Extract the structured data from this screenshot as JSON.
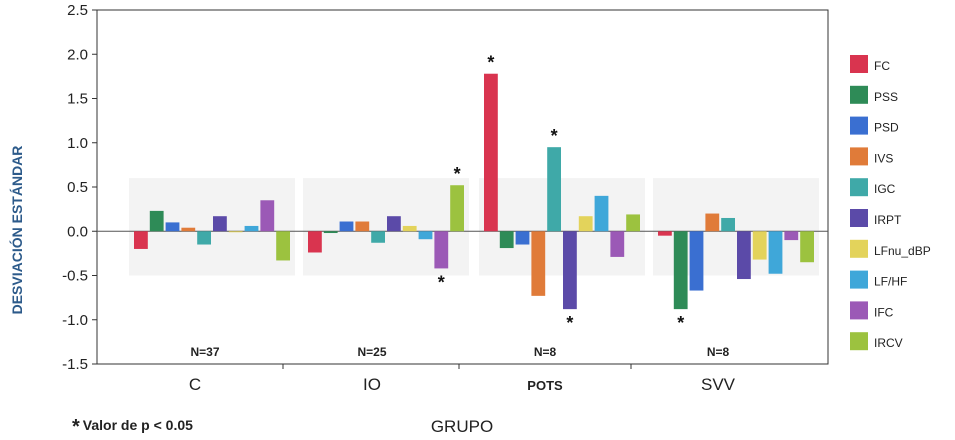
{
  "chart_data": {
    "type": "bar",
    "categories": [
      "C",
      "IO",
      "POTS",
      "SVV"
    ],
    "group_n_labels": [
      "N=37",
      "N=25",
      "N=8",
      "N=8"
    ],
    "xlabel": "GRUPO",
    "ylabel": "DESVIACIÓN ESTÁNDAR",
    "ylim": [
      -1.5,
      2.5
    ],
    "yticks": [
      "2.5",
      "2.0",
      "1.5",
      "1.0",
      "0.5",
      "0.0",
      "-0.5",
      "-1.0",
      "-1.5"
    ],
    "ytick_values": [
      2.5,
      2.0,
      1.5,
      1.0,
      0.5,
      0.0,
      -0.5,
      -1.0,
      -1.5
    ],
    "legend_position": "right",
    "significance_marker": "*",
    "series": [
      {
        "name": "FC",
        "color": "#d9344f",
        "values": [
          -0.2,
          -0.24,
          1.78,
          -0.05
        ],
        "significant": [
          false,
          false,
          true,
          false
        ]
      },
      {
        "name": "PSS",
        "color": "#2e8b57",
        "values": [
          0.23,
          -0.02,
          -0.19,
          -0.88
        ],
        "significant": [
          false,
          false,
          false,
          true
        ]
      },
      {
        "name": "PSD",
        "color": "#3a6fd1",
        "values": [
          0.1,
          0.11,
          -0.15,
          -0.67
        ],
        "significant": [
          false,
          false,
          false,
          false
        ]
      },
      {
        "name": "IVS",
        "color": "#e07b39",
        "values": [
          0.04,
          0.11,
          -0.73,
          0.2
        ],
        "significant": [
          false,
          false,
          false,
          false
        ]
      },
      {
        "name": "IGC",
        "color": "#3fa9a8",
        "values": [
          -0.15,
          -0.13,
          0.95,
          0.15
        ],
        "significant": [
          false,
          false,
          true,
          false
        ]
      },
      {
        "name": "IRPT",
        "color": "#5b4aa8",
        "values": [
          0.17,
          0.17,
          -0.88,
          -0.54
        ],
        "significant": [
          false,
          false,
          true,
          false
        ]
      },
      {
        "name": "LFnu_dBP",
        "color": "#e3d35b",
        "values": [
          0.0,
          0.06,
          0.17,
          -0.32
        ],
        "significant": [
          false,
          false,
          false,
          false
        ]
      },
      {
        "name": "LF/HF",
        "color": "#3fa7d9",
        "values": [
          0.06,
          -0.09,
          0.4,
          -0.48
        ],
        "significant": [
          false,
          false,
          false,
          false
        ]
      },
      {
        "name": "IFC",
        "color": "#9b59b6",
        "values": [
          0.35,
          -0.42,
          -0.29,
          -0.1
        ],
        "significant": [
          false,
          true,
          false,
          false
        ]
      },
      {
        "name": "IRCV",
        "color": "#9cc23f",
        "values": [
          -0.33,
          0.52,
          0.19,
          -0.35
        ],
        "significant": [
          false,
          true,
          false,
          false
        ]
      }
    ]
  },
  "footnote": {
    "star": "*",
    "text": "Valor de p < 0.05"
  }
}
